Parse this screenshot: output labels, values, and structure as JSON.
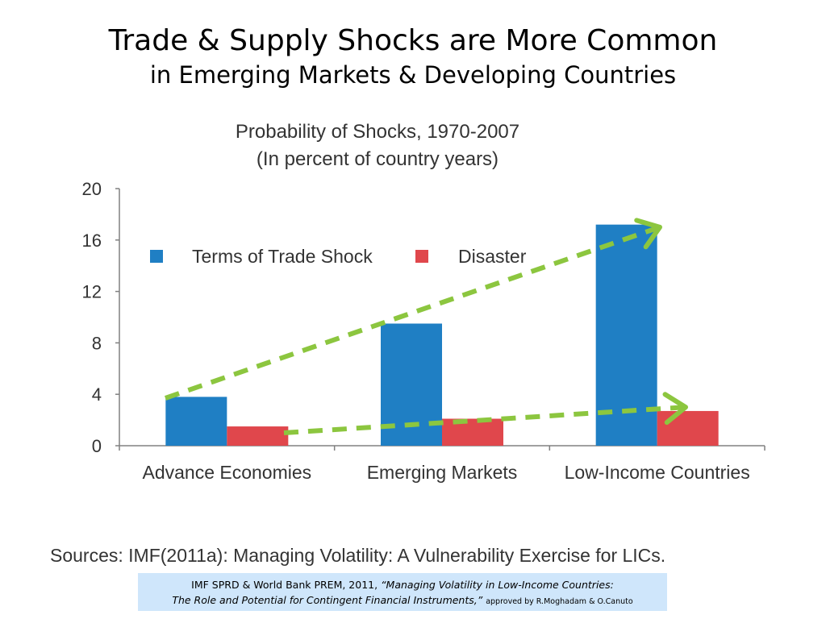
{
  "slide": {
    "title_line1": "Trade & Supply Shocks are More Common",
    "title_line2": "in Emerging Markets & Developing Countries"
  },
  "chart_data": {
    "type": "bar",
    "title": "Probability of Shocks, 1970-2007",
    "subtitle": "(In percent of country years)",
    "categories": [
      "Advance Economies",
      "Emerging Markets",
      "Low-Income Countries"
    ],
    "series": [
      {
        "name": "Terms of Trade Shock",
        "color": "#1f7fc4",
        "values": [
          3.8,
          9.5,
          17.2
        ]
      },
      {
        "name": "Disaster",
        "color": "#e0474c",
        "values": [
          1.5,
          2.1,
          2.7
        ]
      }
    ],
    "ylim": [
      0,
      20
    ],
    "yticks": [
      0,
      4,
      8,
      12,
      16,
      20
    ],
    "grid": false,
    "legend_position": "top-left",
    "annotations": [
      {
        "type": "dashed-arrow",
        "color": "#8cc63f",
        "from": {
          "category": "Advance Economies",
          "y": 3.7
        },
        "to": {
          "category": "Low-Income Countries",
          "y": 17.0
        }
      },
      {
        "type": "dashed-arrow",
        "color": "#8cc63f",
        "from": {
          "category": "Advance Economies",
          "y": 1.0
        },
        "to": {
          "category": "Low-Income Countries",
          "y": 3.0
        }
      }
    ]
  },
  "footer": {
    "sources": "Sources: IMF(2011a): Managing Volatility: A Vulnerability Exercise for LICs.",
    "citation_part1": "IMF SPRD & World Bank PREM, 2011, ",
    "citation_part2": "“Managing Volatility in Low-Income Countries:",
    "citation_part3": "The Role and Potential for Contingent Financial Instruments,” ",
    "citation_part4": "approved by R.Moghadam & O.Canuto"
  }
}
